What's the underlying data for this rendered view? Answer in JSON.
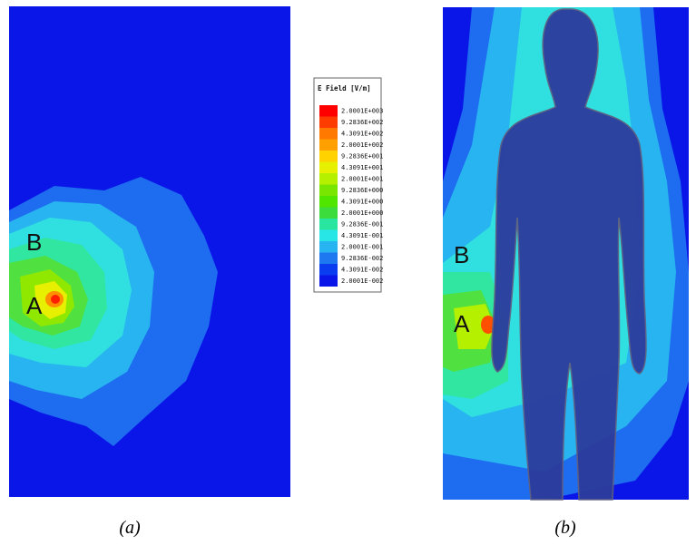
{
  "panels": [
    {
      "caption": "(a)",
      "point_labels": [
        "A",
        "B"
      ]
    },
    {
      "caption": "(b)",
      "point_labels": [
        "A",
        "B"
      ]
    }
  ],
  "legend": {
    "title": "E Field [V/m]",
    "entries": [
      "2.0001E+003",
      "9.2836E+002",
      "4.3091E+002",
      "2.0001E+002",
      "9.2836E+001",
      "4.3091E+001",
      "2.0001E+001",
      "9.2836E+000",
      "4.3091E+000",
      "2.0001E+000",
      "9.2836E-001",
      "4.3091E-001",
      "2.0001E-001",
      "9.2836E-002",
      "4.3091E-002",
      "2.0001E-002"
    ]
  }
}
